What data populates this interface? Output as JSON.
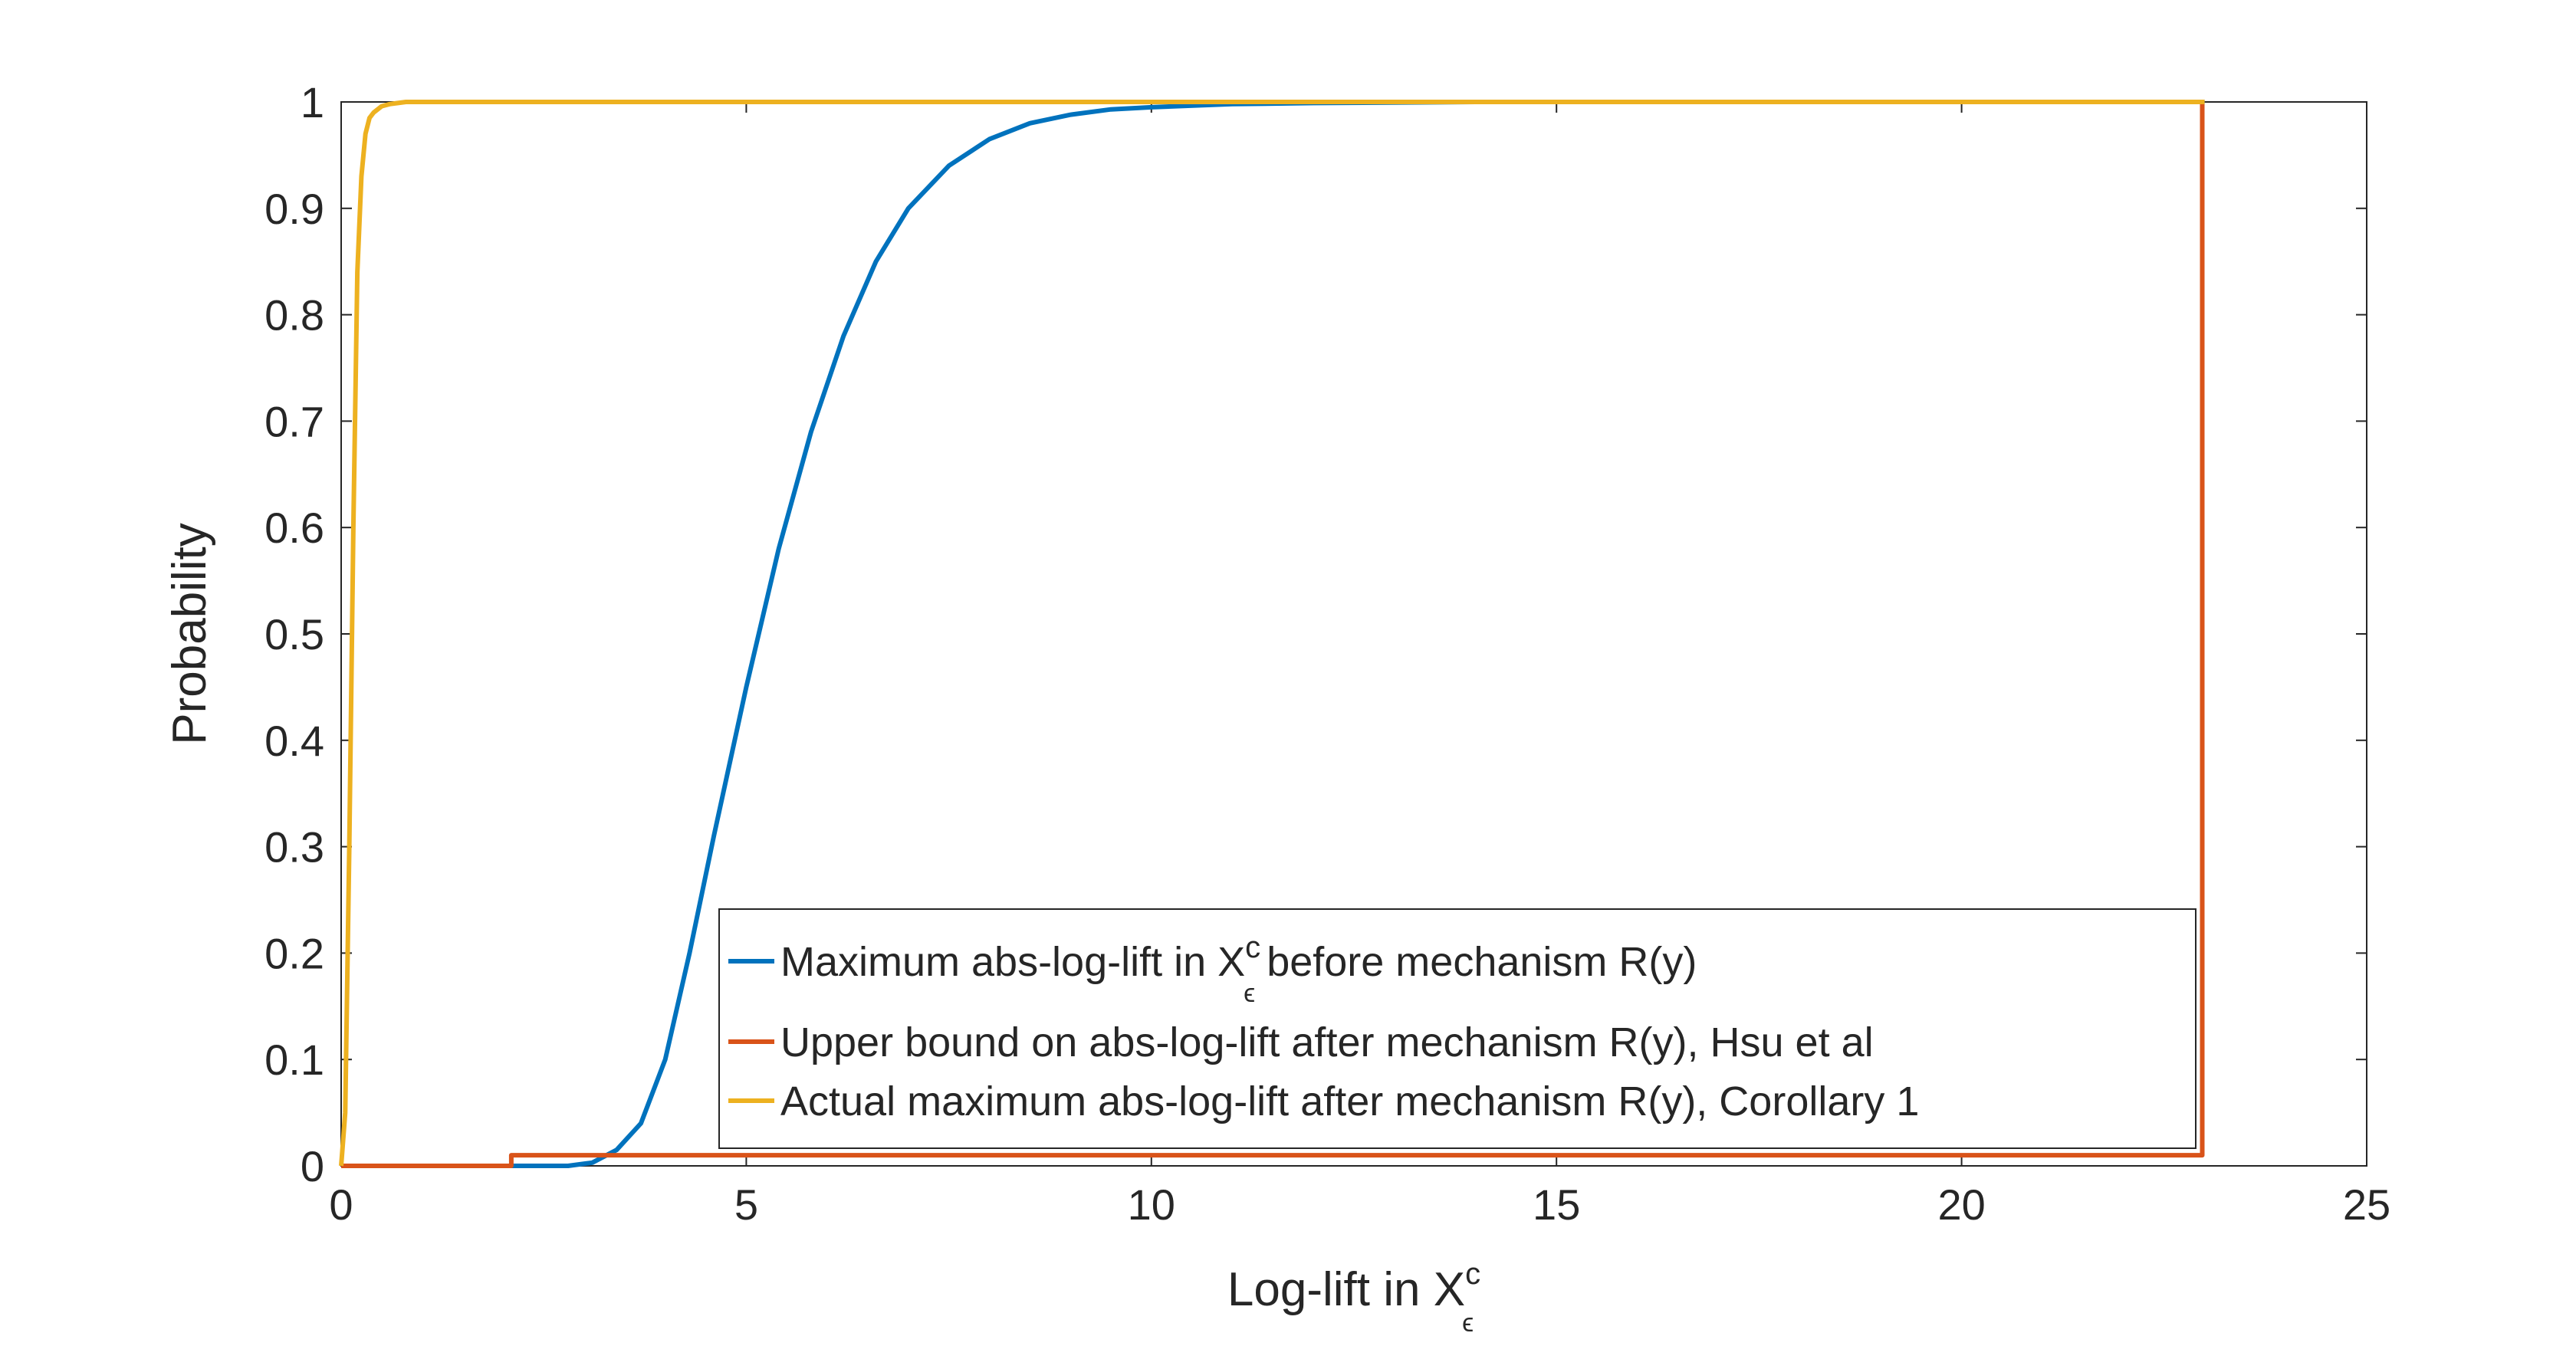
{
  "chart_data": {
    "type": "line",
    "xlabel": "Log-lift in X",
    "xlabel_sup": "c",
    "xlabel_sub": "ϵ",
    "ylabel": "Probability",
    "xlim": [
      0,
      25
    ],
    "ylim": [
      0,
      1
    ],
    "xticks": [
      0,
      5,
      10,
      15,
      20,
      25
    ],
    "xtick_labels": [
      "0",
      "5",
      "10",
      "15",
      "20",
      "25"
    ],
    "yticks": [
      0,
      0.1,
      0.2,
      0.3,
      0.4,
      0.5,
      0.6,
      0.7,
      0.8,
      0.9,
      1
    ],
    "ytick_labels": [
      "0",
      "0.1",
      "0.2",
      "0.3",
      "0.4",
      "0.5",
      "0.6",
      "0.7",
      "0.8",
      "0.9",
      "1"
    ],
    "grid": false,
    "box": true,
    "legend_placement": "bottom-center",
    "series": [
      {
        "name": "Maximum abs-log-lift in X",
        "name_sup": "c",
        "name_sub": "ϵ",
        "name_suffix": " before mechanism R(y)",
        "color": "#0072BD",
        "x": [
          0,
          2.8,
          3.1,
          3.4,
          3.7,
          4.0,
          4.3,
          4.6,
          5.0,
          5.4,
          5.8,
          6.2,
          6.6,
          7.0,
          7.5,
          8.0,
          8.5,
          9.0,
          9.5,
          10,
          11,
          12,
          14,
          23
        ],
        "y": [
          0,
          0,
          0.003,
          0.015,
          0.04,
          0.1,
          0.2,
          0.31,
          0.45,
          0.58,
          0.69,
          0.78,
          0.85,
          0.9,
          0.94,
          0.965,
          0.98,
          0.988,
          0.993,
          0.995,
          0.998,
          0.999,
          1,
          1
        ]
      },
      {
        "name": "Upper bound on abs-log-lift after mechanism R(y), Hsu et al",
        "color": "#D95319",
        "x": [
          0,
          2.1,
          2.1,
          22.97,
          22.97
        ],
        "y": [
          0,
          0,
          0.01,
          0.01,
          1
        ]
      },
      {
        "name": "Actual maximum abs-log-lift after mechanism R(y), Corollary 1",
        "color": "#EDB120",
        "x": [
          0,
          0.05,
          0.1,
          0.15,
          0.2,
          0.25,
          0.3,
          0.35,
          0.4,
          0.5,
          0.6,
          0.7,
          0.8,
          1.0,
          23
        ],
        "y": [
          0,
          0.05,
          0.3,
          0.6,
          0.84,
          0.93,
          0.97,
          0.985,
          0.99,
          0.996,
          0.998,
          0.999,
          1,
          1,
          1
        ]
      }
    ]
  }
}
